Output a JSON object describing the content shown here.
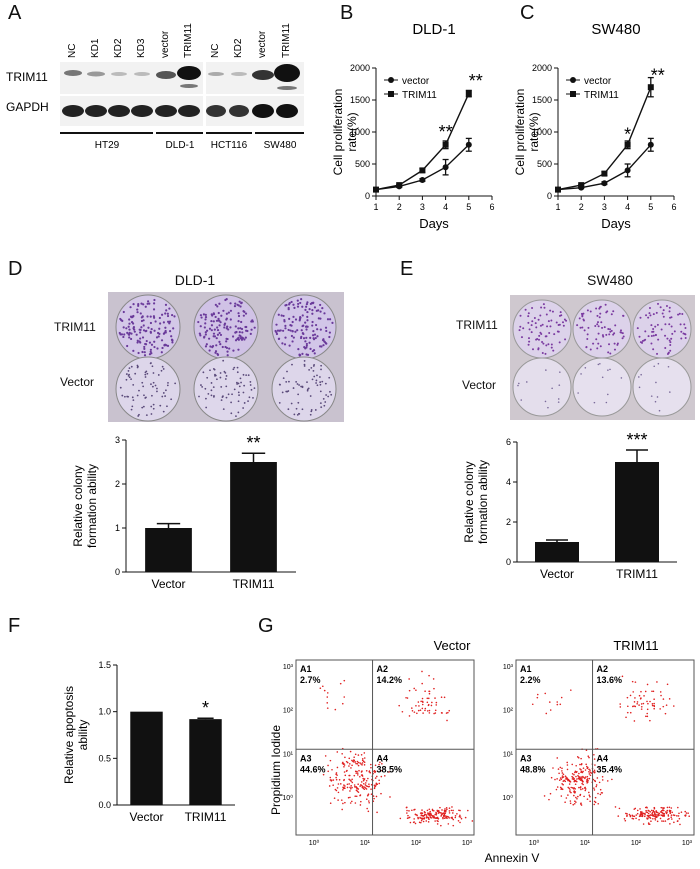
{
  "panel_labels": [
    "A",
    "B",
    "C",
    "D",
    "E",
    "F",
    "G"
  ],
  "western_blot": {
    "rows": [
      "TRIM11",
      "GAPDH"
    ],
    "lanes_left": [
      "NC",
      "KD1",
      "KD2",
      "KD3",
      "vector",
      "TRIM11"
    ],
    "lanes_right": [
      "NC",
      "KD2",
      "vector",
      "TRIM11"
    ],
    "groups": [
      "HT29",
      "DLD-1",
      "HCT116",
      "SW480"
    ]
  },
  "colony": {
    "D": {
      "title": "DLD-1",
      "rows": [
        "TRIM11",
        "Vector"
      ]
    },
    "E": {
      "title": "SW480",
      "rows": [
        "TRIM11",
        "Vector"
      ]
    }
  },
  "flow": {
    "ylabel": "Propidium Iodide",
    "xlabel": "Annexin V",
    "ticks": [
      "10⁰",
      "10¹",
      "10²",
      "10³"
    ],
    "panels": [
      {
        "title": "Vector",
        "quadrants": [
          {
            "id": "A1",
            "value": "2.7%"
          },
          {
            "id": "A2",
            "value": "14.2%"
          },
          {
            "id": "A3",
            "value": "44.6%"
          },
          {
            "id": "A4",
            "value": "38.5%"
          }
        ]
      },
      {
        "title": "TRIM11",
        "quadrants": [
          {
            "id": "A1",
            "value": "2.2%"
          },
          {
            "id": "A2",
            "value": "13.6%"
          },
          {
            "id": "A3",
            "value": "48.8%"
          },
          {
            "id": "A4",
            "value": "35.4%"
          }
        ]
      }
    ]
  },
  "colors": {
    "line": "#111111",
    "bar": "#111111",
    "dots": "#e02020"
  },
  "chart_data": [
    {
      "id": "B",
      "type": "line",
      "title": "DLD-1",
      "xlabel": "Days",
      "ylabel": "Cell proliferation rate(%)",
      "x": [
        1,
        2,
        3,
        4,
        5
      ],
      "xlim": [
        1,
        6
      ],
      "ylim": [
        0,
        2000
      ],
      "xticks": [
        "1",
        "2",
        "3",
        "4",
        "5",
        "6"
      ],
      "yticks": [
        "0",
        "500",
        "1000",
        "1500",
        "2000"
      ],
      "series": [
        {
          "name": "vector",
          "marker": "circle",
          "values": [
            100,
            150,
            250,
            450,
            800
          ],
          "err": [
            0,
            10,
            20,
            120,
            100
          ]
        },
        {
          "name": "TRIM11",
          "marker": "square",
          "values": [
            100,
            170,
            400,
            800,
            1600
          ],
          "err": [
            0,
            10,
            30,
            60,
            50
          ]
        }
      ],
      "annotations": [
        {
          "x": 4,
          "y": 1000,
          "text": "**"
        },
        {
          "x": 5.3,
          "y": 1800,
          "text": "**"
        }
      ],
      "legend": "top-left"
    },
    {
      "id": "C",
      "type": "line",
      "title": "SW480",
      "xlabel": "Days",
      "ylabel": "Cell proliferation rate(%)",
      "x": [
        1,
        2,
        3,
        4,
        5
      ],
      "xlim": [
        1,
        6
      ],
      "ylim": [
        0,
        2000
      ],
      "xticks": [
        "1",
        "2",
        "3",
        "4",
        "5",
        "6"
      ],
      "yticks": [
        "0",
        "500",
        "1000",
        "1500",
        "2000"
      ],
      "series": [
        {
          "name": "vector",
          "marker": "circle",
          "values": [
            100,
            130,
            200,
            400,
            800
          ],
          "err": [
            0,
            10,
            20,
            100,
            100
          ]
        },
        {
          "name": "TRIM11",
          "marker": "square",
          "values": [
            100,
            170,
            350,
            800,
            1700
          ],
          "err": [
            0,
            10,
            30,
            60,
            150
          ]
        }
      ],
      "annotations": [
        {
          "x": 4,
          "y": 960,
          "text": "*"
        },
        {
          "x": 5.3,
          "y": 1880,
          "text": "**"
        }
      ],
      "legend": "top-left"
    },
    {
      "id": "D",
      "type": "bar",
      "categories": [
        "Vector",
        "TRIM11"
      ],
      "values": [
        1.0,
        2.5
      ],
      "err": [
        0.1,
        0.2
      ],
      "ylabel": "Relative colony formation ability",
      "ylim": [
        0,
        3
      ],
      "yticks": [
        "0",
        "1",
        "2",
        "3"
      ],
      "annotations": [
        {
          "category": "TRIM11",
          "text": "**"
        }
      ]
    },
    {
      "id": "E",
      "type": "bar",
      "categories": [
        "Vector",
        "TRIM11"
      ],
      "values": [
        1.0,
        5.0
      ],
      "err": [
        0.1,
        0.6
      ],
      "ylabel": "Relative colony formation ability",
      "ylim": [
        0,
        6
      ],
      "yticks": [
        "0",
        "2",
        "4",
        "6"
      ],
      "annotations": [
        {
          "category": "TRIM11",
          "text": "***"
        }
      ]
    },
    {
      "id": "F",
      "type": "bar",
      "categories": [
        "Vector",
        "TRIM11"
      ],
      "values": [
        1.0,
        0.92
      ],
      "err": [
        0,
        0.01
      ],
      "ylabel": "Relative apoptosis ability",
      "ylim": [
        0,
        1.5
      ],
      "yticks": [
        "0.0",
        "0.5",
        "1.0",
        "1.5"
      ],
      "annotations": [
        {
          "category": "TRIM11",
          "text": "*"
        }
      ]
    }
  ]
}
